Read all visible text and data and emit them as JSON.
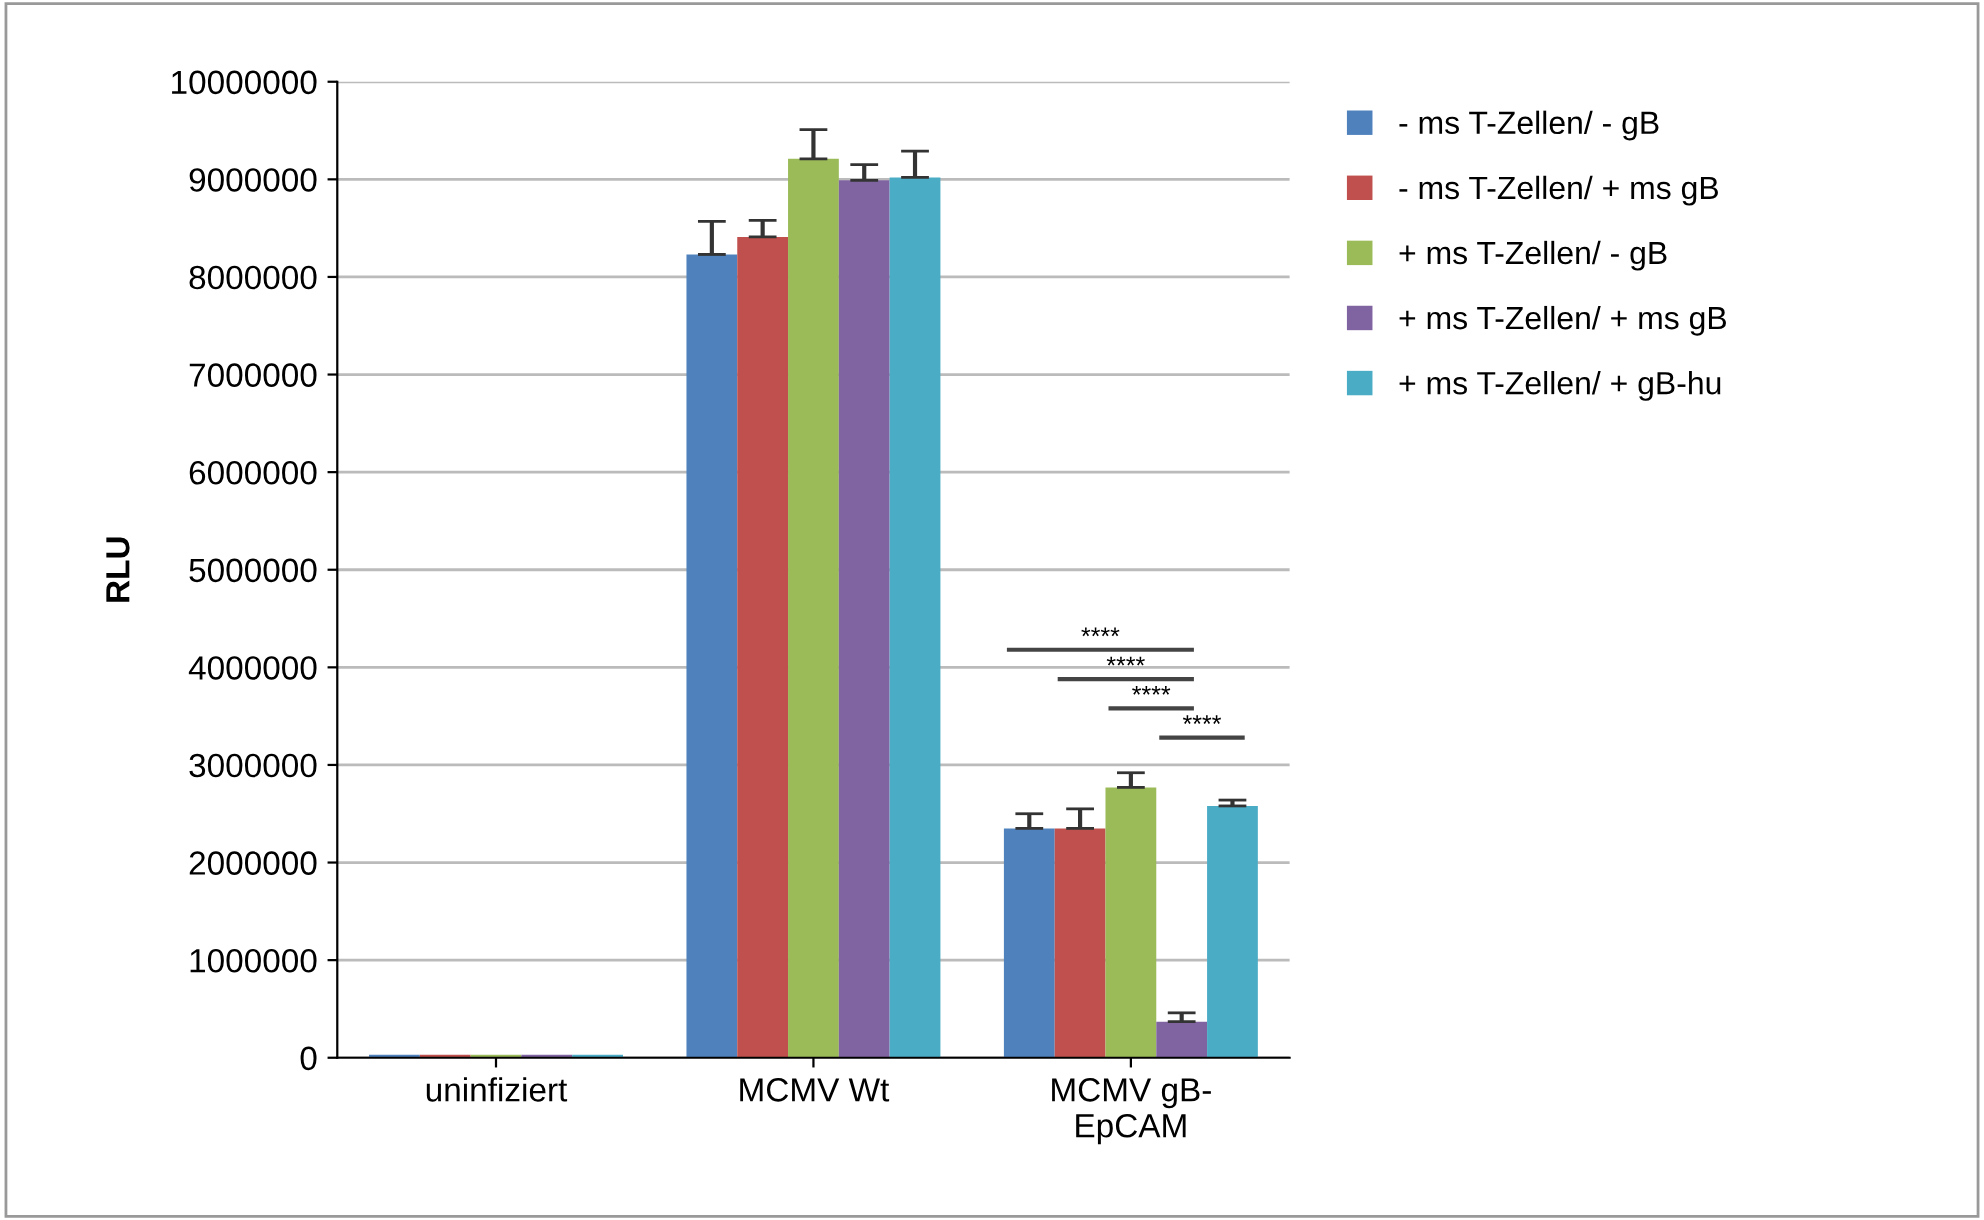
{
  "chart_data": {
    "type": "bar",
    "ylabel": "RLU",
    "categories": [
      "uninfiziert",
      "MCMV Wt",
      "MCMV gB-\nEpCAM"
    ],
    "series": [
      {
        "name": "- ms T-Zellen/ - gB",
        "color": "#4f81bd",
        "values": [
          30000,
          8230000,
          2350000
        ],
        "errors": [
          null,
          340000,
          150000
        ]
      },
      {
        "name": "- ms T-Zellen/ + ms gB",
        "color": "#c0504d",
        "values": [
          30000,
          8410000,
          2350000
        ],
        "errors": [
          null,
          170000,
          200000
        ]
      },
      {
        "name": "+ ms T-Zellen/ - gB",
        "color": "#9bbb59",
        "values": [
          30000,
          9210000,
          2770000
        ],
        "errors": [
          null,
          300000,
          150000
        ]
      },
      {
        "name": "+ ms T-Zellen/ + ms gB",
        "color": "#8064a2",
        "values": [
          30000,
          8990000,
          370000
        ],
        "errors": [
          null,
          160000,
          90000
        ]
      },
      {
        "name": "+ ms T-Zellen/ + gB-hu",
        "color": "#4bacc6",
        "values": [
          30000,
          9020000,
          2580000
        ],
        "errors": [
          null,
          270000,
          60000
        ]
      }
    ],
    "ylim": [
      0,
      10000000
    ],
    "yticks": [
      0,
      1000000,
      2000000,
      3000000,
      4000000,
      5000000,
      6000000,
      7000000,
      8000000,
      9000000,
      10000000
    ],
    "grid": "y",
    "legend": "top right",
    "annotations": [
      "****",
      "****",
      "****",
      "****"
    ]
  }
}
